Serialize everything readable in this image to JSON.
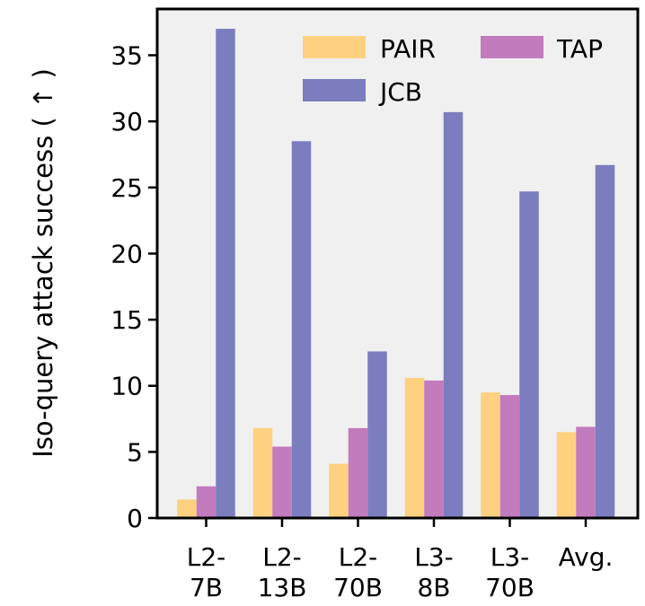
{
  "chart_data": {
    "type": "bar",
    "categories": [
      [
        "L2-",
        "7B"
      ],
      [
        "L2-",
        "13B"
      ],
      [
        "L2-",
        "70B"
      ],
      [
        "L3-",
        "8B"
      ],
      [
        "L3-",
        "70B"
      ],
      [
        "Avg."
      ]
    ],
    "series": [
      {
        "name": "PAIR",
        "color": "#fdd17f",
        "values": [
          1.4,
          6.8,
          4.1,
          10.6,
          9.5,
          6.5
        ]
      },
      {
        "name": "TAP",
        "color": "#c27bbd",
        "values": [
          2.4,
          5.4,
          6.8,
          10.4,
          9.3,
          6.9
        ]
      },
      {
        "name": "JCB",
        "color": "#7b7dbe",
        "values": [
          37.0,
          28.5,
          12.6,
          30.7,
          24.7,
          26.7
        ]
      }
    ],
    "ylabel": "Iso-query attack success ( ↑ )",
    "xlabel": "",
    "ylim": [
      0,
      38.5
    ],
    "yticks": [
      0,
      5,
      10,
      15,
      20,
      25,
      30,
      35
    ],
    "legend_position": "top-right",
    "plot_background": "#f0f0f0"
  }
}
